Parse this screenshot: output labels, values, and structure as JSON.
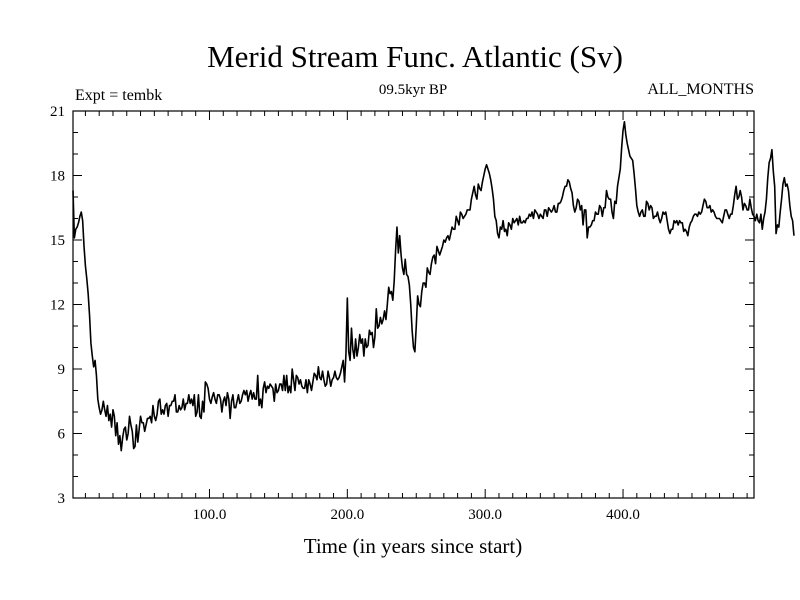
{
  "chart_data": {
    "type": "line",
    "title": "Merid Stream Func. Atlantic (Sv)",
    "subtitle": "09.5kyr BP",
    "left_label": "Expt = tembk",
    "right_label": "ALL_MONTHS",
    "xlabel": "Time (in years since start)",
    "ylabel": "",
    "xlim": [
      1,
      495
    ],
    "ylim": [
      3,
      21
    ],
    "x_ticks": [
      100,
      200,
      300,
      400
    ],
    "x_tick_labels": [
      "100.0",
      "200.0",
      "300.0",
      "400.0"
    ],
    "y_ticks": [
      3,
      6,
      9,
      12,
      15,
      18,
      21
    ],
    "y_tick_labels": [
      "3",
      "6",
      "9",
      "12",
      "15",
      "18",
      "21"
    ],
    "grid": false,
    "series": [
      {
        "name": "Merid Stream Func. Atlantic",
        "color": "#000000",
        "x_start": 1,
        "x_step": 1,
        "values": [
          17.3,
          15.1,
          15.5,
          15.6,
          15.8,
          16.1,
          16.3,
          15.9,
          14.7,
          13.8,
          13.2,
          12.5,
          11.5,
          10.2,
          9.6,
          9.1,
          9.4,
          8.7,
          7.6,
          7.2,
          6.9,
          7.1,
          7.5,
          7.1,
          6.8,
          7.3,
          6.6,
          6.9,
          6.3,
          7.1,
          6.8,
          5.9,
          6.5,
          5.5,
          5.9,
          5.2,
          5.8,
          6.2,
          6.3,
          5.7,
          6.0,
          6.8,
          6.4,
          6.1,
          5.3,
          5.4,
          6.4,
          5.6,
          6.2,
          6.8,
          6.5,
          6.5,
          6.1,
          6.4,
          6.7,
          6.7,
          6.8,
          6.5,
          7.3,
          6.8,
          6.6,
          6.9,
          7.5,
          7.6,
          6.9,
          7.1,
          6.9,
          7.3,
          7.4,
          6.8,
          7.3,
          7.3,
          7.5,
          7.5,
          7.8,
          7.0,
          7.0,
          7.3,
          7.1,
          7.2,
          7.6,
          7.1,
          7.4,
          7.4,
          7.8,
          7.4,
          7.6,
          7.3,
          7.8,
          6.8,
          7.0,
          7.8,
          6.8,
          6.7,
          7.5,
          7.0,
          8.4,
          8.3,
          8.1,
          7.6,
          7.4,
          7.7,
          7.9,
          7.6,
          7.4,
          7.8,
          7.8,
          7.6,
          7.0,
          7.5,
          7.7,
          7.3,
          7.9,
          7.6,
          6.7,
          7.5,
          7.8,
          7.2,
          7.2,
          7.5,
          7.8,
          7.4,
          7.5,
          7.8,
          8.0,
          7.8,
          8.0,
          7.5,
          7.8,
          8.0,
          7.6,
          7.9,
          7.6,
          7.6,
          8.7,
          7.3,
          7.6,
          7.2,
          8.1,
          8.4,
          7.9,
          8.2,
          8.1,
          8.3,
          8.2,
          8.1,
          7.5,
          8.3,
          7.9,
          8.0,
          8.3,
          8.3,
          8.0,
          8.7,
          8.0,
          8.7,
          7.9,
          8.2,
          7.9,
          9.0,
          8.5,
          8.0,
          8.7,
          8.6,
          8.3,
          8.5,
          8.2,
          8.1,
          8.1,
          8.5,
          7.9,
          8.5,
          8.3,
          8.0,
          8.4,
          8.8,
          8.7,
          8.5,
          9.1,
          8.6,
          8.5,
          8.9,
          8.5,
          8.2,
          8.3,
          8.9,
          8.6,
          8.2,
          8.5,
          8.6,
          8.9,
          8.6,
          8.5,
          8.6,
          8.8,
          9.1,
          9.4,
          8.4,
          9.7,
          12.3,
          9.8,
          9.4,
          10.9,
          9.9,
          9.5,
          10.4,
          9.6,
          10.0,
          10.6,
          10.2,
          10.4,
          9.6,
          10.4,
          10.0,
          10.1,
          10.8,
          10.6,
          10.7,
          10.0,
          10.5,
          11.8,
          10.9,
          11.0,
          11.4,
          11.1,
          11.3,
          11.7,
          11.3,
          12.0,
          12.8,
          12.5,
          12.6,
          12.2,
          13.1,
          14.5,
          15.6,
          14.4,
          15.2,
          14.3,
          13.7,
          13.4,
          14.1,
          13.4,
          13.3,
          12.9,
          12.0,
          10.8,
          10.0,
          9.8,
          11.0,
          12.4,
          12.0,
          11.9,
          12.6,
          13.0,
          13.0,
          12.8,
          13.7,
          13.5,
          13.4,
          13.9,
          14.2,
          14.3,
          13.9,
          14.7,
          14.5,
          14.3,
          14.5,
          14.7,
          15.0,
          14.9,
          15.1,
          15.2,
          15.0,
          15.3,
          15.6,
          15.5,
          15.5,
          16.1,
          15.9,
          15.7,
          16.3,
          16.2,
          16.0,
          16.1,
          16.2,
          16.4,
          16.4,
          16.4,
          16.9,
          17.2,
          17.5,
          17.1,
          16.9,
          17.6,
          17.4,
          17.3,
          17.7,
          18.0,
          18.3,
          18.5,
          18.3,
          18.1,
          17.8,
          17.4,
          16.9,
          16.1,
          15.9,
          15.3,
          15.1,
          15.6,
          15.5,
          15.9,
          15.4,
          15.5,
          15.2,
          15.8,
          15.7,
          15.5,
          16.0,
          15.8,
          15.9,
          16.0,
          15.7,
          16.1,
          15.8,
          15.8,
          15.9,
          15.8,
          16.0,
          16.0,
          16.2,
          16.1,
          16.3,
          16.0,
          16.4,
          16.3,
          16.2,
          16.0,
          16.2,
          16.1,
          16.0,
          16.4,
          16.4,
          16.1,
          16.5,
          16.4,
          16.3,
          16.4,
          16.6,
          16.3,
          16.3,
          16.7,
          16.7,
          16.8,
          17.0,
          17.3,
          17.5,
          17.5,
          17.8,
          17.7,
          17.4,
          17.2,
          16.6,
          16.3,
          16.5,
          16.9,
          16.8,
          16.4,
          16.6,
          15.7,
          16.4,
          16.4,
          15.1,
          15.6,
          15.6,
          15.7,
          15.9,
          15.9,
          16.3,
          16.2,
          16.2,
          16.6,
          16.5,
          16.1,
          16.5,
          16.5,
          17.3,
          17.0,
          16.9,
          16.9,
          16.3,
          16.0,
          16.8,
          16.7,
          17.5,
          17.9,
          18.3,
          19.3,
          20.1,
          20.5,
          19.9,
          19.5,
          19.2,
          18.9,
          18.8,
          18.7,
          18.1,
          17.4,
          16.6,
          16.3,
          16.1,
          16.3,
          16.4,
          16.1,
          16.1,
          16.8,
          16.7,
          16.4,
          16.6,
          16.5,
          16.0,
          16.1,
          16.1,
          16.3,
          16.0,
          15.8,
          16.0,
          16.3,
          16.2,
          16.3,
          15.9,
          15.5,
          15.3,
          15.5,
          15.5,
          15.9,
          15.8,
          15.9,
          15.7,
          15.9,
          15.8,
          15.8,
          15.4,
          15.5,
          15.4,
          15.2,
          15.6,
          15.8,
          15.9,
          16.1,
          16.2,
          16.2,
          16.1,
          16.3,
          16.2,
          16.3,
          16.6,
          16.9,
          16.8,
          16.5,
          16.5,
          16.6,
          16.3,
          16.4,
          16.3,
          16.1,
          16.0,
          16.0,
          16.0,
          15.9,
          15.8,
          16.1,
          16.4,
          16.4,
          16.2,
          16.0,
          16.2,
          16.2,
          16.6,
          17.1,
          17.5,
          16.9,
          17.0,
          17.3,
          17.0,
          16.4,
          16.7,
          16.6,
          16.4,
          16.4,
          16.9,
          16.5,
          16.2,
          16.1,
          15.9,
          16.2,
          15.9,
          15.8,
          16.2,
          15.5,
          16.0,
          16.3,
          16.9,
          17.9,
          18.6,
          18.8,
          19.2,
          18.2,
          17.5,
          15.3,
          15.7,
          15.6,
          16.3,
          16.9,
          17.6,
          17.9,
          17.5,
          17.6,
          17.3,
          16.6,
          16.1,
          15.9,
          15.2
        ]
      }
    ]
  }
}
